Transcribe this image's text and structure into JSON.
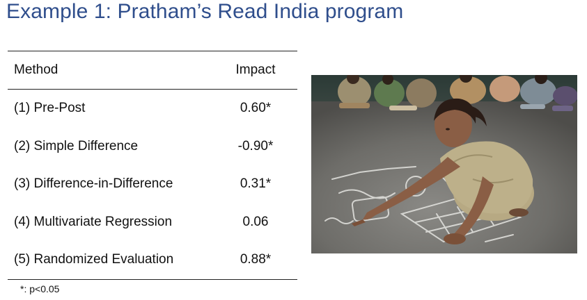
{
  "slide": {
    "title": "Example 1: Pratham’s Read India program"
  },
  "table": {
    "headers": {
      "method": "Method",
      "impact": "Impact"
    },
    "rows": [
      {
        "method": "(1) Pre-Post",
        "impact": "0.60*"
      },
      {
        "method": "(2) Simple Difference",
        "impact": "-0.90*"
      },
      {
        "method": "(3) Difference-in-Difference",
        "impact": "0.31*"
      },
      {
        "method": "(4) Multivariate Regression",
        "impact": "0.06"
      },
      {
        "method": "(5) Randomized Evaluation",
        "impact": "0.88*"
      }
    ],
    "footnote": "*: p<0.05"
  },
  "colors": {
    "title": "#2F4E8C",
    "rule": "#222222",
    "floor": "#6E6D69",
    "chalk": "#E4E4E0",
    "dress": "#BDB08A"
  }
}
